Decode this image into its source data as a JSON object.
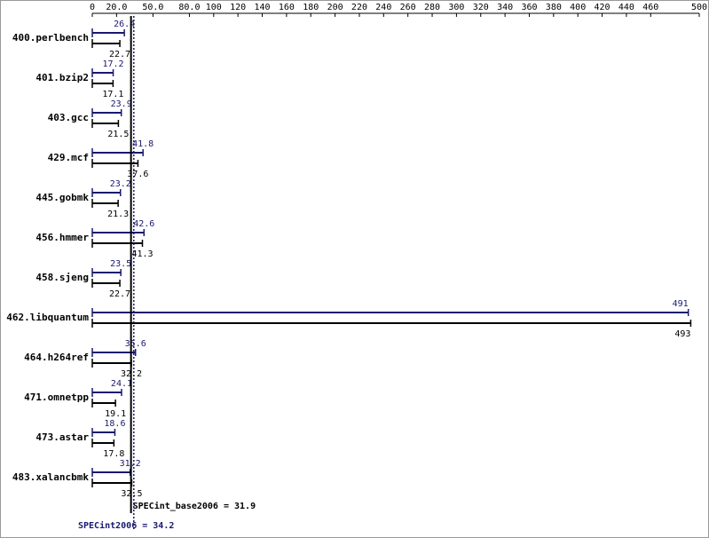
{
  "chart_data": {
    "type": "bar",
    "orientation": "horizontal",
    "categories": [
      "400.perlbench",
      "401.bzip2",
      "403.gcc",
      "429.mcf",
      "445.gobmk",
      "456.hmmer",
      "458.sjeng",
      "462.libquantum",
      "464.h264ref",
      "471.omnetpp",
      "473.astar",
      "483.xalancbmk"
    ],
    "series": [
      {
        "color": "#191970",
        "values": [
          26.4,
          17.2,
          23.9,
          41.8,
          23.2,
          42.6,
          23.5,
          491,
          35.6,
          24.1,
          18.6,
          31.2
        ]
      },
      {
        "color": "#000000",
        "values": [
          22.7,
          17.1,
          21.5,
          37.6,
          21.3,
          41.3,
          22.7,
          493,
          32.2,
          19.1,
          17.8,
          32.5
        ]
      }
    ],
    "xlim": [
      0,
      500
    ],
    "xticks": [
      0,
      {
        "value": 20,
        "label": "20.0"
      },
      {
        "value": 50,
        "label": "50.0"
      },
      {
        "value": 80,
        "label": "80.0"
      },
      100,
      120,
      140,
      160,
      180,
      200,
      220,
      240,
      260,
      280,
      300,
      320,
      340,
      360,
      380,
      400,
      420,
      440,
      460,
      500
    ],
    "reference_lines": [
      {
        "label": "SPECint_base2006 = 31.9",
        "value": 31.9,
        "color": "#000000"
      },
      {
        "label": "SPECint2006 = 34.2",
        "value": 34.2,
        "color": "#191970"
      }
    ]
  }
}
